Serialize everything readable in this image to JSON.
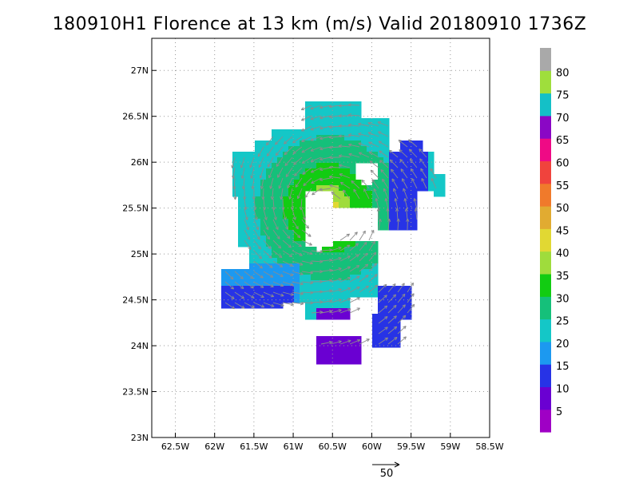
{
  "title": "180910H1 Florence at 13 km (m/s) Valid 20180910 1736Z",
  "map": {
    "lon_ticks": [
      "62.5W",
      "62W",
      "61.5W",
      "61W",
      "60.5W",
      "60W",
      "59.5W",
      "59W",
      "58.5W"
    ],
    "lat_ticks": [
      "27N",
      "26.5N",
      "26N",
      "25.5N",
      "25N",
      "24.5N",
      "24N",
      "23.5N",
      "23N"
    ],
    "lon_range": [
      -62.8,
      -58.5
    ],
    "lat_range": [
      23.0,
      27.35
    ],
    "grid": "dotted"
  },
  "colorbar": {
    "labels": [
      "5",
      "10",
      "15",
      "20",
      "25",
      "30",
      "35",
      "40",
      "45",
      "50",
      "55",
      "60",
      "65",
      "70",
      "75",
      "80"
    ],
    "colors": [
      "#9f00c5",
      "#6a00d2",
      "#2733e6",
      "#1c99f0",
      "#14c7c7",
      "#15c07a",
      "#12cc12",
      "#9fdc3c",
      "#e1d833",
      "#e1ab31",
      "#f07a2b",
      "#f0433d",
      "#ef0a85",
      "#8a07c5",
      "#14c0c7",
      "#9fde3c",
      "#a9a9a9"
    ]
  },
  "reference_vector": {
    "label": "50"
  },
  "storm": {
    "name": "Florence",
    "center": [
      -60.55,
      25.5
    ]
  }
}
